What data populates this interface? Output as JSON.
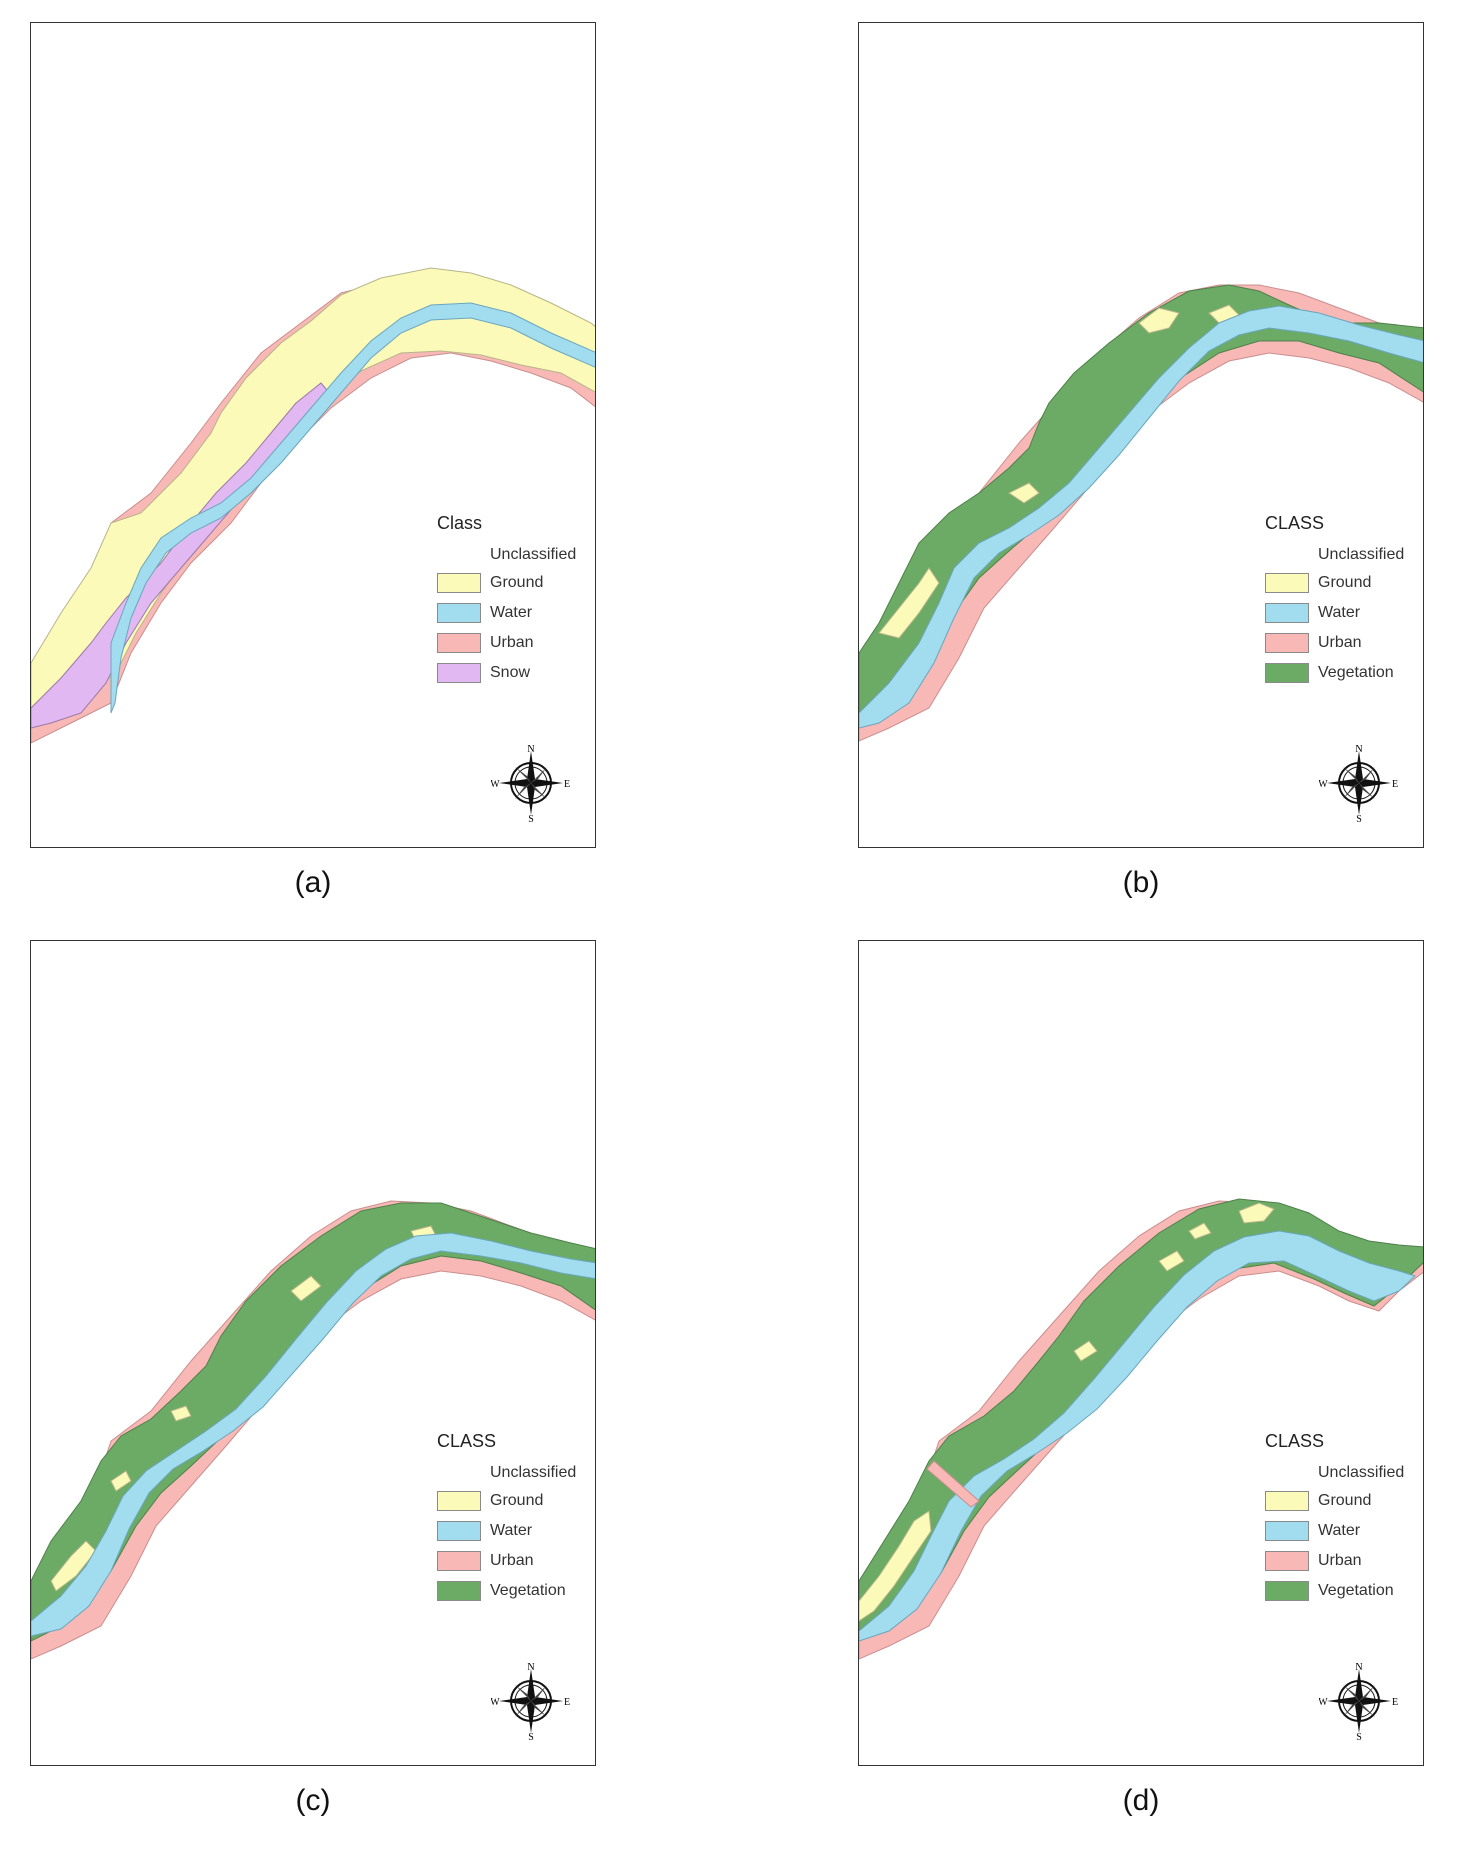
{
  "colors": {
    "ground": "#fcfab8",
    "water": "#a2dcef",
    "urban": "#f7b8b6",
    "snow": "#e2b8f2",
    "vegetation": "#6bab66"
  },
  "panels": [
    {
      "caption": "(a)",
      "legend_title": "Class",
      "legend": [
        {
          "label": "Unclassified",
          "swatch": null
        },
        {
          "label": "Ground",
          "swatch": "ground"
        },
        {
          "label": "Water",
          "swatch": "water"
        },
        {
          "label": "Urban",
          "swatch": "urban"
        },
        {
          "label": "Snow",
          "swatch": "snow"
        }
      ],
      "compass": {
        "n": "N",
        "s": "S",
        "e": "E",
        "w": "W",
        "icon": "compass-rose-icon"
      }
    },
    {
      "caption": "(b)",
      "legend_title": "CLASS",
      "legend": [
        {
          "label": "Unclassified",
          "swatch": null
        },
        {
          "label": "Ground",
          "swatch": "ground"
        },
        {
          "label": "Water",
          "swatch": "water"
        },
        {
          "label": "Urban",
          "swatch": "urban"
        },
        {
          "label": "Vegetation",
          "swatch": "vegetation"
        }
      ],
      "compass": {
        "n": "N",
        "s": "S",
        "e": "E",
        "w": "W",
        "icon": "compass-rose-icon"
      }
    },
    {
      "caption": "(c)",
      "legend_title": "CLASS",
      "legend": [
        {
          "label": "Unclassified",
          "swatch": null
        },
        {
          "label": "Ground",
          "swatch": "ground"
        },
        {
          "label": "Water",
          "swatch": "water"
        },
        {
          "label": "Urban",
          "swatch": "urban"
        },
        {
          "label": "Vegetation",
          "swatch": "vegetation"
        }
      ],
      "compass": {
        "n": "N",
        "s": "S",
        "e": "E",
        "w": "W",
        "icon": "compass-rose-icon"
      }
    },
    {
      "caption": "(d)",
      "legend_title": "CLASS",
      "legend": [
        {
          "label": "Unclassified",
          "swatch": null
        },
        {
          "label": "Ground",
          "swatch": "ground"
        },
        {
          "label": "Water",
          "swatch": "water"
        },
        {
          "label": "Urban",
          "swatch": "urban"
        },
        {
          "label": "Vegetation",
          "swatch": "vegetation"
        }
      ],
      "compass": {
        "n": "N",
        "s": "S",
        "e": "E",
        "w": "W",
        "icon": "compass-rose-icon"
      }
    }
  ]
}
